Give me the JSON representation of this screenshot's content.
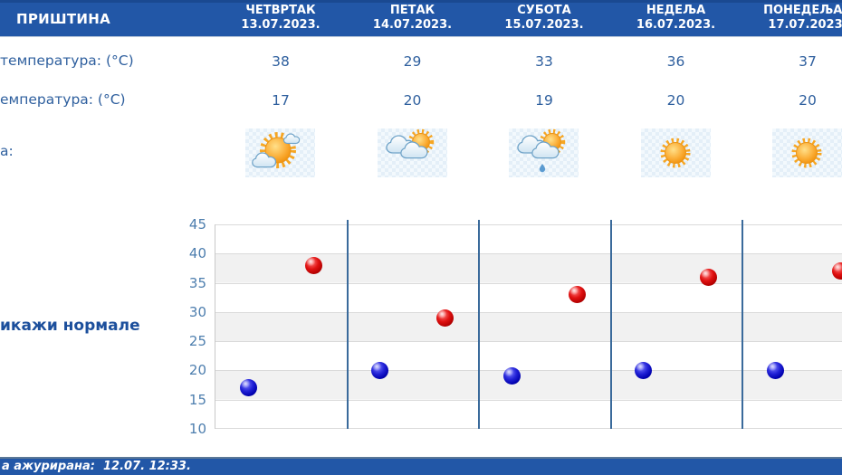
{
  "header": {
    "city": "ПРИШТИНА",
    "days": [
      {
        "name": "ЧЕТВРТАК",
        "date": "13.07.2023."
      },
      {
        "name": "ПЕТАК",
        "date": "14.07.2023."
      },
      {
        "name": "СУБОТА",
        "date": "15.07.2023."
      },
      {
        "name": "НЕДЕЉА",
        "date": "16.07.2023."
      },
      {
        "name": "ПОНЕДЕЉАК",
        "date": "17.07.2023."
      }
    ]
  },
  "rows": {
    "max_label": "температура: (°C)",
    "min_label": "емпература: (°C)",
    "icon_label": "а:",
    "max_values": [
      "38",
      "29",
      "33",
      "36",
      "37"
    ],
    "min_values": [
      "17",
      "20",
      "19",
      "20",
      "20"
    ],
    "icons": [
      "sun-clouds",
      "clouds-sun",
      "clouds-sun-rain",
      "sun",
      "sun"
    ]
  },
  "links": {
    "show_normals": "икажи нормале"
  },
  "chart_data": {
    "type": "scatter",
    "categories": [
      "ЧЕТВРТАК 13.07.2023.",
      "ПЕТАК 14.07.2023.",
      "СУБОТА 15.07.2023.",
      "НЕДЕЉА 16.07.2023.",
      "ПОНЕДЕЉАК 17.07.2023."
    ],
    "series": [
      {
        "name": "max",
        "color": "#d21111",
        "values": [
          38,
          29,
          33,
          36,
          37
        ]
      },
      {
        "name": "min",
        "color": "#1717c8",
        "values": [
          17,
          20,
          19,
          20,
          20
        ]
      }
    ],
    "ylim": [
      10,
      45
    ],
    "yticks": [
      45,
      40,
      35,
      30,
      25,
      20,
      15,
      10
    ],
    "grid": true,
    "legend": "none",
    "title": ""
  },
  "footer": {
    "updated": "а ажурирана:  12.07. 12:33."
  },
  "colors": {
    "header_bar": "#2257a7",
    "text_navy": "#2e5f9e",
    "link_navy": "#1c4f9c",
    "axis_label": "#4d7eae",
    "day_separator": "#3a6a9b",
    "band_gray": "#f1f1f1",
    "dot_red": "#d21111",
    "dot_blue": "#1717c8"
  }
}
